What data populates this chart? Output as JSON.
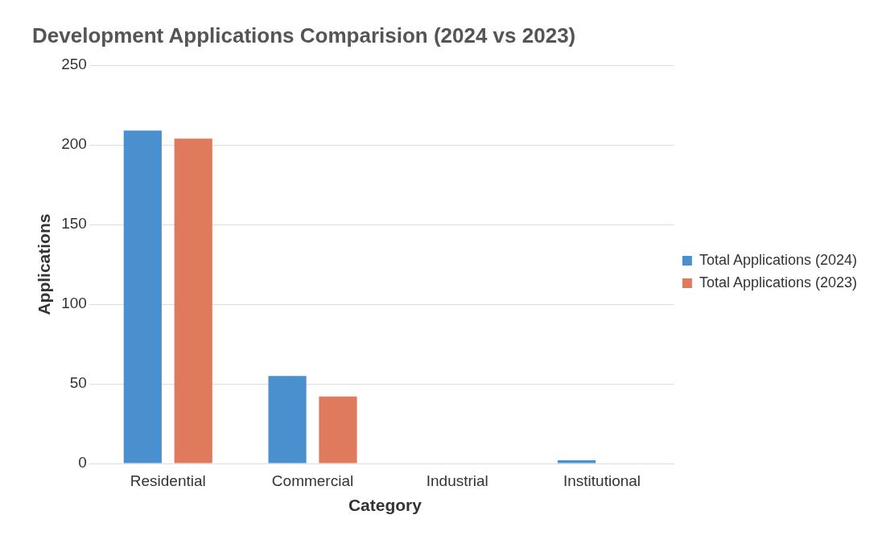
{
  "chart_data": {
    "type": "bar",
    "title": "Development Applications Comparision (2024 vs 2023)",
    "xlabel": "Category",
    "ylabel": "Applications",
    "categories": [
      "Residential",
      "Commercial",
      "Industrial",
      "Institutional"
    ],
    "series": [
      {
        "name": "Total Applications (2024)",
        "color": "#4a90cf",
        "values": [
          209,
          55,
          0,
          2
        ]
      },
      {
        "name": "Total Applications (2023)",
        "color": "#e07a5c",
        "values": [
          204,
          42,
          0,
          0
        ]
      }
    ],
    "ylim": [
      0,
      250
    ],
    "yticks": [
      0,
      50,
      100,
      150,
      200,
      250
    ],
    "grid": "y",
    "legend": "right"
  }
}
